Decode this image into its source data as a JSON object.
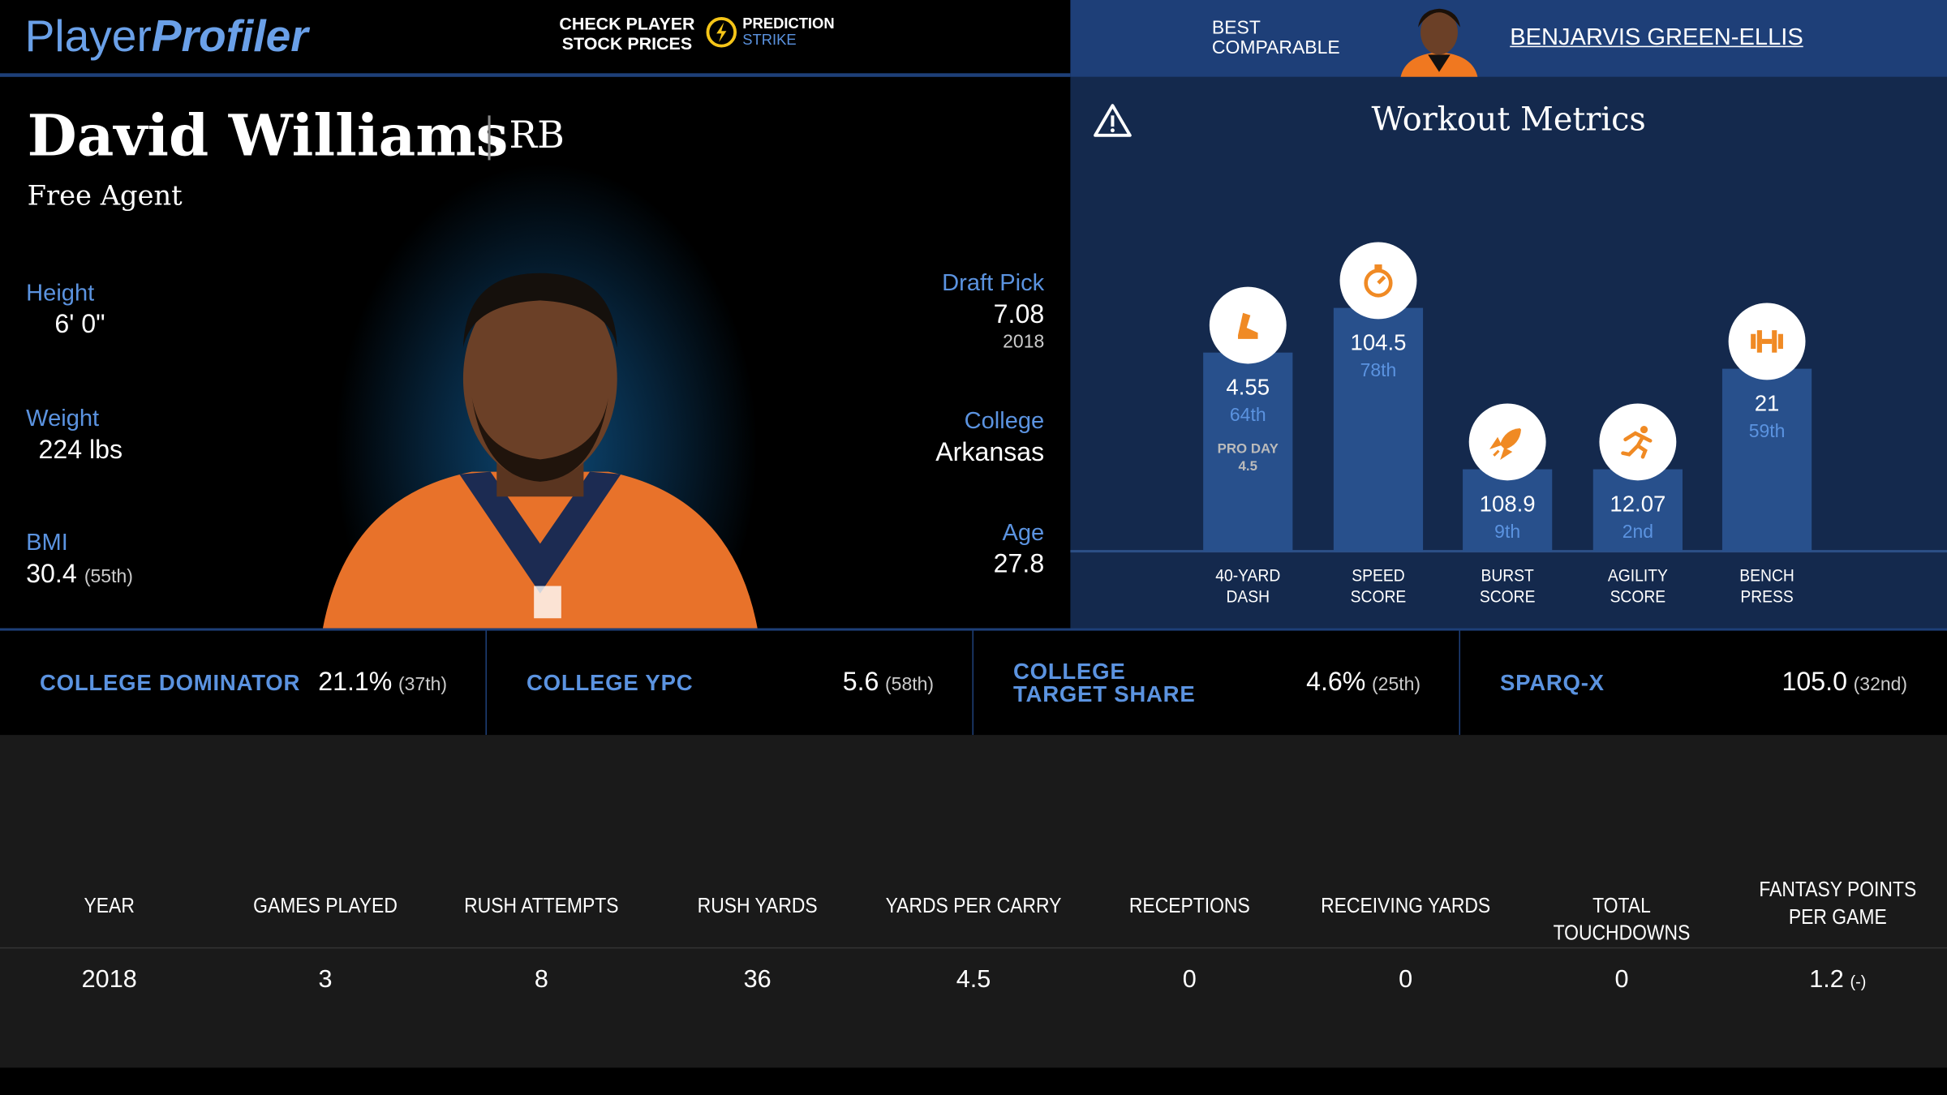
{
  "header": {
    "logo": {
      "part1": "Player",
      "part2": "Profiler"
    },
    "promo": {
      "line1": "CHECK PLAYER STOCK PRICES",
      "brand": "PREDICTION",
      "brand_sub": "STRIKE"
    },
    "comparable": {
      "label": "BEST COMPARABLE",
      "name": "BENJARVIS GREEN-ELLIS"
    }
  },
  "player": {
    "name": "David Williams",
    "position": "RB",
    "status": "Free Agent",
    "bio": [
      {
        "label": "Height",
        "value": "6' 0\""
      },
      {
        "label": "Weight",
        "value": "224 lbs"
      },
      {
        "label": "BMI",
        "value": "30.4",
        "rank": "(55th)"
      }
    ],
    "draft": [
      {
        "label": "Draft Pick",
        "value": "7.08",
        "sub": "2018"
      },
      {
        "label": "College",
        "value": "Arkansas"
      },
      {
        "label": "Age",
        "value": "27.8"
      }
    ]
  },
  "workout": {
    "title": "Workout Metrics",
    "metrics": [
      {
        "label": "40-YARD DASH",
        "value": "4.55",
        "percentile": "64th",
        "note": "PRO DAY",
        "note_value": "4.5"
      },
      {
        "label": "SPEED SCORE",
        "value": "104.5",
        "percentile": "78th"
      },
      {
        "label": "BURST SCORE",
        "value": "108.9",
        "percentile": "9th"
      },
      {
        "label": "AGILITY SCORE",
        "value": "12.07",
        "percentile": "2nd"
      },
      {
        "label": "BENCH PRESS",
        "value": "21",
        "percentile": "59th"
      }
    ]
  },
  "college_metrics": [
    {
      "label": "COLLEGE DOMINATOR",
      "value": "21.1%",
      "rank": "(37th)"
    },
    {
      "label": "COLLEGE YPC",
      "value": "5.6",
      "rank": "(58th)"
    },
    {
      "label": "COLLEGE TARGET SHARE",
      "value": "4.6%",
      "rank": "(25th)"
    },
    {
      "label": "SPARQ-X",
      "value": "105.0",
      "rank": "(32nd)"
    }
  ],
  "table": {
    "headers": [
      "YEAR",
      "GAMES PLAYED",
      "RUSH ATTEMPTS",
      "RUSH YARDS",
      "YARDS PER CARRY",
      "RECEPTIONS",
      "RECEIVING YARDS",
      "TOTAL TOUCHDOWNS",
      "FANTASY POINTS PER GAME"
    ],
    "rows": [
      [
        "2018",
        "3",
        "8",
        "36",
        "4.5",
        "0",
        "0",
        "0",
        "1.2"
      ]
    ],
    "fantasy_note": "(-)"
  }
}
